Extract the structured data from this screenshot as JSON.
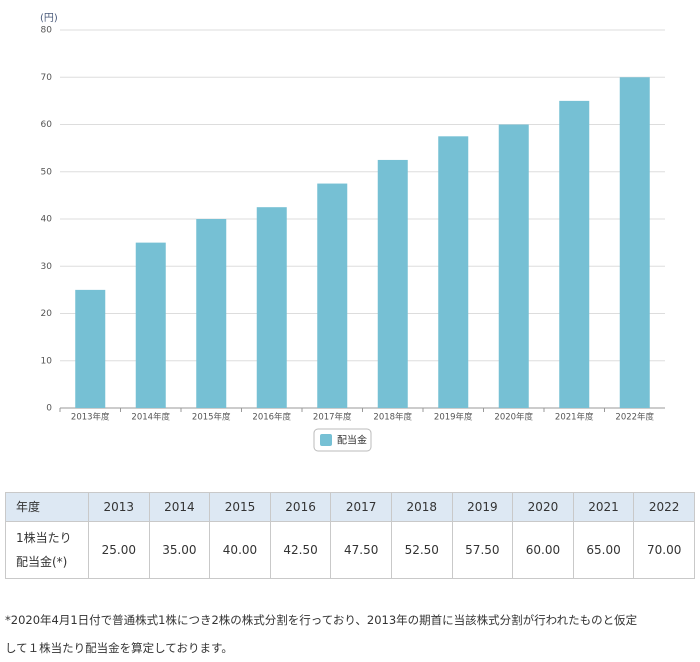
{
  "chart_data": {
    "type": "bar",
    "y_label": "(円)",
    "categories": [
      "2013年度",
      "2014年度",
      "2015年度",
      "2016年度",
      "2017年度",
      "2018年度",
      "2019年度",
      "2020年度",
      "2021年度",
      "2022年度"
    ],
    "series": [
      {
        "name": "配当金",
        "color": "#76c0d4",
        "values": [
          25,
          35,
          40,
          42.5,
          47.5,
          52.5,
          57.5,
          60,
          65,
          70
        ]
      }
    ],
    "ylim": [
      0,
      80
    ],
    "yticks": [
      0,
      10,
      20,
      30,
      40,
      50,
      60,
      70,
      80
    ],
    "grid": true,
    "legend": "bottom"
  },
  "table": {
    "header": [
      "年度",
      "2013",
      "2014",
      "2015",
      "2016",
      "2017",
      "2018",
      "2019",
      "2020",
      "2021",
      "2022"
    ],
    "rows": [
      [
        [
          "1株当たり",
          "配当金(*)"
        ],
        "25.00",
        "35.00",
        "40.00",
        "42.50",
        "47.50",
        "52.50",
        "57.50",
        "60.00",
        "65.00",
        "70.00"
      ]
    ]
  },
  "note": [
    "*2020年4月1日付で普通株式1株につき2株の株式分割を行っており、2013年の期首に当該株式分割が行われたものと仮定",
    "して１株当たり配当金を算定しております。"
  ]
}
